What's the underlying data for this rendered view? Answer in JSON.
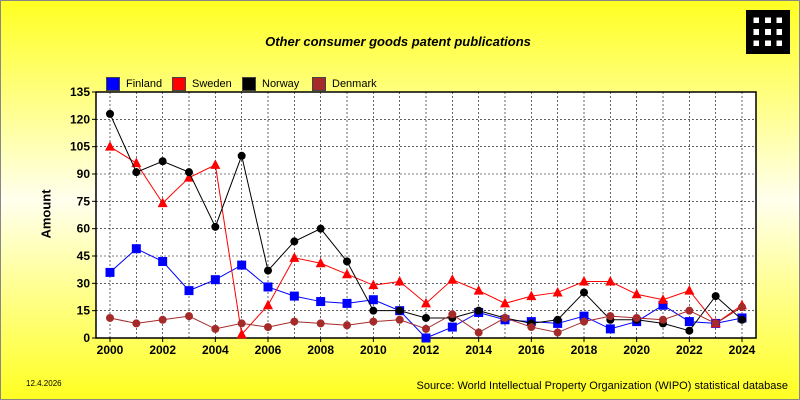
{
  "header": {
    "date": "12.4.2026",
    "source": "Source: World Intellectual Property Organization (WIPO) statistical database"
  },
  "chart_data": {
    "type": "line",
    "title": "Other consumer goods patent publications",
    "xlabel": "",
    "ylabel": "Amount",
    "x": [
      2000,
      2001,
      2002,
      2003,
      2004,
      2005,
      2006,
      2007,
      2008,
      2009,
      2010,
      2011,
      2012,
      2013,
      2014,
      2015,
      2016,
      2017,
      2018,
      2019,
      2020,
      2021,
      2022,
      2023,
      2024
    ],
    "x_ticks": [
      "2000",
      "2002",
      "2004",
      "2006",
      "2008",
      "2010",
      "2012",
      "2014",
      "2016",
      "2018",
      "2020",
      "2022",
      "2024"
    ],
    "y_ticks": [
      "0",
      "15",
      "30",
      "45",
      "60",
      "75",
      "90",
      "105",
      "120",
      "135"
    ],
    "ylim": [
      0,
      135
    ],
    "grid": true,
    "legend_position": "top-left",
    "series": [
      {
        "name": "Finland",
        "color": "#0000ff",
        "marker": "square",
        "values": [
          36,
          49,
          42,
          26,
          32,
          40,
          28,
          23,
          20,
          19,
          21,
          15,
          0,
          6,
          14,
          10,
          9,
          8,
          12,
          5,
          9,
          18,
          9,
          8,
          11
        ]
      },
      {
        "name": "Sweden",
        "color": "#ff0000",
        "marker": "triangle",
        "values": [
          105,
          96,
          74,
          88,
          95,
          2,
          18,
          44,
          41,
          35,
          29,
          31,
          19,
          32,
          26,
          19,
          23,
          25,
          31,
          31,
          24,
          21,
          26,
          8,
          18
        ]
      },
      {
        "name": "Norway",
        "color": "#000000",
        "marker": "circle",
        "values": [
          123,
          91,
          97,
          91,
          61,
          100,
          37,
          53,
          60,
          42,
          15,
          15,
          11,
          11,
          15,
          11,
          8,
          10,
          25,
          10,
          10,
          8,
          4,
          23,
          10
        ]
      },
      {
        "name": "Denmark",
        "color": "#a52a2a",
        "marker": "circle",
        "values": [
          11,
          8,
          10,
          12,
          5,
          8,
          6,
          9,
          8,
          7,
          9,
          10,
          5,
          13,
          3,
          11,
          6,
          3,
          9,
          12,
          11,
          10,
          15,
          8,
          17
        ]
      }
    ]
  }
}
